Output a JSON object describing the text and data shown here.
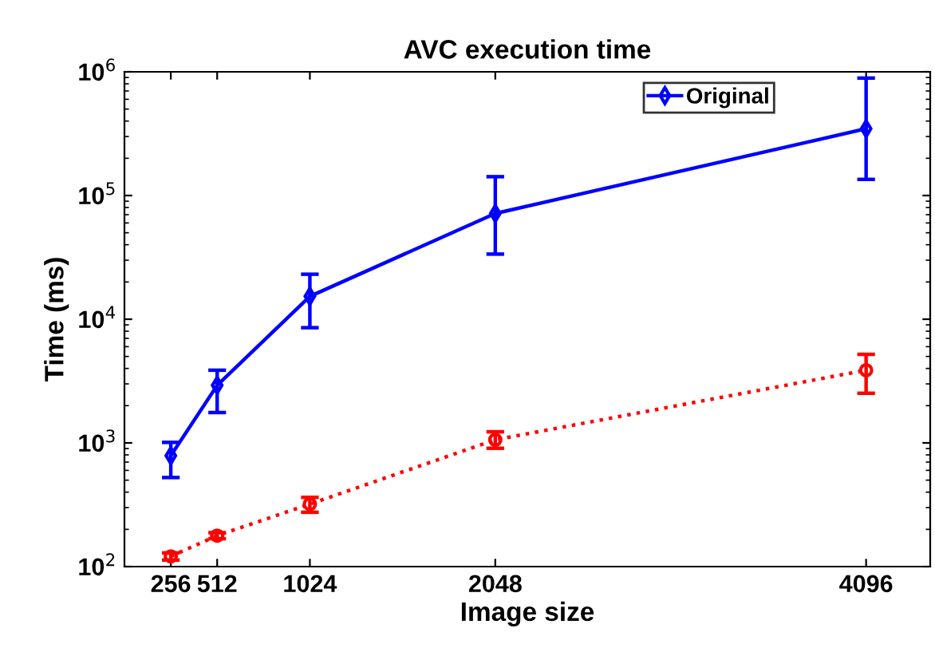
{
  "chart_data": {
    "type": "line",
    "title": "AVC execution time",
    "xlabel": "Image size",
    "ylabel": "Time (ms)",
    "log": "y",
    "x": [
      256,
      512,
      1024,
      2048,
      4096
    ],
    "xlim": [
      0,
      4450
    ],
    "xticks": [
      256,
      512,
      1024,
      2048,
      4096
    ],
    "ylim": [
      100,
      1000000
    ],
    "yticks": [
      {
        "value": 100,
        "label": "10$^{2}$"
      },
      {
        "value": 1000,
        "label": "10$^{3}$"
      },
      {
        "value": 10000,
        "label": "10$^{4}$"
      },
      {
        "value": 100000,
        "label": "10$^{5}$"
      },
      {
        "value": 1000000,
        "label": "10$^{6}$"
      }
    ],
    "legend": "top right",
    "series": [
      {
        "color": "#ff0000",
        "line_style": "dotted",
        "marker": "circle",
        "values": [
          121,
          178,
          320,
          1060,
          3870
        ],
        "errors": [
          [
            113,
            129
          ],
          [
            168,
            188
          ],
          [
            275,
            363
          ],
          [
            905,
            1230
          ],
          [
            2520,
            5200
          ]
        ]
      },
      {
        "name": "Original",
        "color": "#0000ff",
        "line_style": "solid",
        "marker": "diamond",
        "values": [
          788,
          2920,
          15300,
          71600,
          347000
        ],
        "errors": [
          [
            525,
            1010
          ],
          [
            1760,
            3870
          ],
          [
            8540,
            23100
          ],
          [
            33600,
            142000
          ],
          [
            135000,
            890000
          ]
        ]
      }
    ]
  }
}
